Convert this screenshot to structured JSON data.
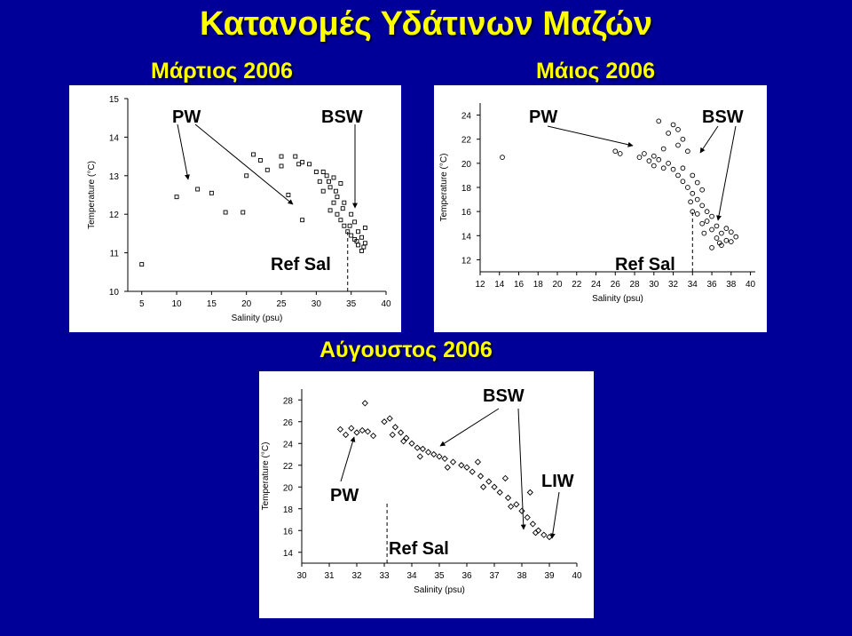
{
  "slide": {
    "title": "Κατανομές Υδάτινων Μαζών",
    "colors": {
      "background": "#000099",
      "title": "#ffff00",
      "panel": "#ffffff"
    }
  },
  "chart_data": [
    {
      "type": "scatter",
      "title": "Μάρτιος 2006",
      "xlabel": "Salinity (psu)",
      "ylabel": "Temperature (°C)",
      "xlim": [
        3,
        40
      ],
      "ylim": [
        10,
        15
      ],
      "xticks": [
        5,
        10,
        15,
        20,
        25,
        30,
        35,
        40
      ],
      "yticks": [
        10,
        11,
        12,
        13,
        14,
        15
      ],
      "marker": "square",
      "annotations": {
        "pw": "PW",
        "bsw": "BSW",
        "ref": "Ref Sal"
      },
      "ref_salinity": 34.5,
      "series": [
        {
          "points": [
            [
              5,
              10.7
            ],
            [
              10,
              12.45
            ],
            [
              13,
              12.65
            ],
            [
              15,
              12.55
            ],
            [
              17,
              12.05
            ],
            [
              19.5,
              12.05
            ],
            [
              21,
              13.55
            ],
            [
              22,
              13.4
            ],
            [
              23,
              13.15
            ],
            [
              20,
              13.0
            ],
            [
              25,
              13.5
            ],
            [
              25,
              13.25
            ],
            [
              27,
              13.5
            ],
            [
              27.5,
              13.3
            ],
            [
              28,
              13.35
            ],
            [
              29,
              13.3
            ],
            [
              26,
              12.5
            ],
            [
              28,
              11.85
            ],
            [
              30,
              13.1
            ],
            [
              31,
              13.1
            ],
            [
              30.5,
              12.85
            ],
            [
              31.5,
              13.0
            ],
            [
              31,
              12.6
            ],
            [
              32,
              12.7
            ],
            [
              32.5,
              12.95
            ],
            [
              32.5,
              12.3
            ],
            [
              32,
              12.1
            ],
            [
              33,
              12.45
            ],
            [
              33.5,
              12.8
            ],
            [
              33,
              12.0
            ],
            [
              33.5,
              11.85
            ],
            [
              34,
              12.3
            ],
            [
              34,
              11.7
            ],
            [
              34.5,
              11.55
            ],
            [
              35,
              12.0
            ],
            [
              35,
              11.45
            ],
            [
              35.5,
              11.8
            ],
            [
              35.5,
              11.35
            ],
            [
              36,
              11.55
            ],
            [
              36,
              11.2
            ],
            [
              36.5,
              11.4
            ],
            [
              36.5,
              11.05
            ],
            [
              37,
              11.25
            ],
            [
              37,
              11.65
            ],
            [
              34.8,
              11.7
            ],
            [
              35.8,
              11.3
            ],
            [
              36.8,
              11.15
            ],
            [
              33.8,
              12.15
            ],
            [
              32.8,
              12.6
            ],
            [
              31.8,
              12.85
            ]
          ]
        }
      ]
    },
    {
      "type": "scatter",
      "title": "Μάιος 2006",
      "xlabel": "Salinity (psu)",
      "ylabel": "Temperature (°C)",
      "xlim": [
        12,
        40.5
      ],
      "ylim": [
        11,
        25
      ],
      "xticks": [
        12,
        14,
        16,
        18,
        20,
        22,
        24,
        26,
        28,
        30,
        32,
        34,
        36,
        38,
        40
      ],
      "yticks": [
        12,
        14,
        16,
        18,
        20,
        22,
        24
      ],
      "marker": "circle",
      "annotations": {
        "pw": "PW",
        "bsw": "BSW",
        "ref": "Ref Sal"
      },
      "ref_salinity": 34,
      "series": [
        {
          "points": [
            [
              14.3,
              20.5
            ],
            [
              26,
              21.0
            ],
            [
              26.5,
              20.8
            ],
            [
              28.5,
              20.5
            ],
            [
              29,
              20.8
            ],
            [
              29.5,
              20.2
            ],
            [
              30,
              20.6
            ],
            [
              30,
              19.8
            ],
            [
              30.5,
              20.3
            ],
            [
              31,
              19.6
            ],
            [
              31,
              21.2
            ],
            [
              31.5,
              20.0
            ],
            [
              30.5,
              23.5
            ],
            [
              31.5,
              22.5
            ],
            [
              32,
              23.2
            ],
            [
              32.5,
              22.8
            ],
            [
              33,
              22.0
            ],
            [
              32.5,
              21.5
            ],
            [
              33.5,
              21.0
            ],
            [
              32,
              19.5
            ],
            [
              32.5,
              19.0
            ],
            [
              33,
              19.6
            ],
            [
              33,
              18.5
            ],
            [
              33.5,
              18.0
            ],
            [
              34,
              17.5
            ],
            [
              34,
              19.0
            ],
            [
              34.5,
              18.4
            ],
            [
              34.5,
              17.0
            ],
            [
              35,
              16.5
            ],
            [
              35,
              17.8
            ],
            [
              35.5,
              16.0
            ],
            [
              35.5,
              15.2
            ],
            [
              36,
              15.6
            ],
            [
              36,
              14.5
            ],
            [
              36.5,
              14.8
            ],
            [
              36.5,
              13.8
            ],
            [
              37,
              14.2
            ],
            [
              37,
              13.2
            ],
            [
              37.5,
              13.6
            ],
            [
              37.5,
              14.6
            ],
            [
              38,
              13.5
            ],
            [
              38,
              14.3
            ],
            [
              38.5,
              13.9
            ],
            [
              36,
              13.0
            ],
            [
              35,
              15.0
            ],
            [
              34,
              16.0
            ],
            [
              33.8,
              16.8
            ],
            [
              34.5,
              15.8
            ],
            [
              35.2,
              14.2
            ],
            [
              36.8,
              13.4
            ]
          ]
        }
      ]
    },
    {
      "type": "scatter",
      "title": "Αύγουστος 2006",
      "xlabel": "Salinity (psu)",
      "ylabel": "Temperature (°C)",
      "xlim": [
        30,
        40
      ],
      "ylim": [
        13,
        29
      ],
      "xticks": [
        30,
        31,
        32,
        33,
        34,
        35,
        36,
        37,
        38,
        39,
        40
      ],
      "yticks": [
        14,
        16,
        18,
        20,
        22,
        24,
        26,
        28
      ],
      "marker": "diamond",
      "annotations": {
        "pw": "PW",
        "bsw": "BSW",
        "liw": "LIW",
        "ref": "Ref Sal"
      },
      "ref_salinity": 33.1,
      "series": [
        {
          "points": [
            [
              31.4,
              25.3
            ],
            [
              31.6,
              24.8
            ],
            [
              31.8,
              25.4
            ],
            [
              32.0,
              25.0
            ],
            [
              32.2,
              25.2
            ],
            [
              32.4,
              25.1
            ],
            [
              32.6,
              24.7
            ],
            [
              32.3,
              27.7
            ],
            [
              33.0,
              26.0
            ],
            [
              33.2,
              26.3
            ],
            [
              33.4,
              25.5
            ],
            [
              33.6,
              25.0
            ],
            [
              33.8,
              24.5
            ],
            [
              34.0,
              24.0
            ],
            [
              34.2,
              23.6
            ],
            [
              34.4,
              23.5
            ],
            [
              34.6,
              23.2
            ],
            [
              34.8,
              23.0
            ],
            [
              35.0,
              22.8
            ],
            [
              35.2,
              22.6
            ],
            [
              35.5,
              22.3
            ],
            [
              35.8,
              22.0
            ],
            [
              36.0,
              21.8
            ],
            [
              36.2,
              21.4
            ],
            [
              36.5,
              21.0
            ],
            [
              36.8,
              20.5
            ],
            [
              37.0,
              20.0
            ],
            [
              37.2,
              19.5
            ],
            [
              37.5,
              19.0
            ],
            [
              37.8,
              18.4
            ],
            [
              38.0,
              17.8
            ],
            [
              38.2,
              17.2
            ],
            [
              38.4,
              16.6
            ],
            [
              38.6,
              16.0
            ],
            [
              38.8,
              15.6
            ],
            [
              39.0,
              15.4
            ],
            [
              36.4,
              22.3
            ],
            [
              37.4,
              20.8
            ],
            [
              38.3,
              19.5
            ],
            [
              33.3,
              24.8
            ],
            [
              33.7,
              24.2
            ],
            [
              34.3,
              22.8
            ],
            [
              35.3,
              21.8
            ],
            [
              36.6,
              20.0
            ],
            [
              37.6,
              18.2
            ],
            [
              38.5,
              15.8
            ]
          ]
        }
      ]
    }
  ]
}
